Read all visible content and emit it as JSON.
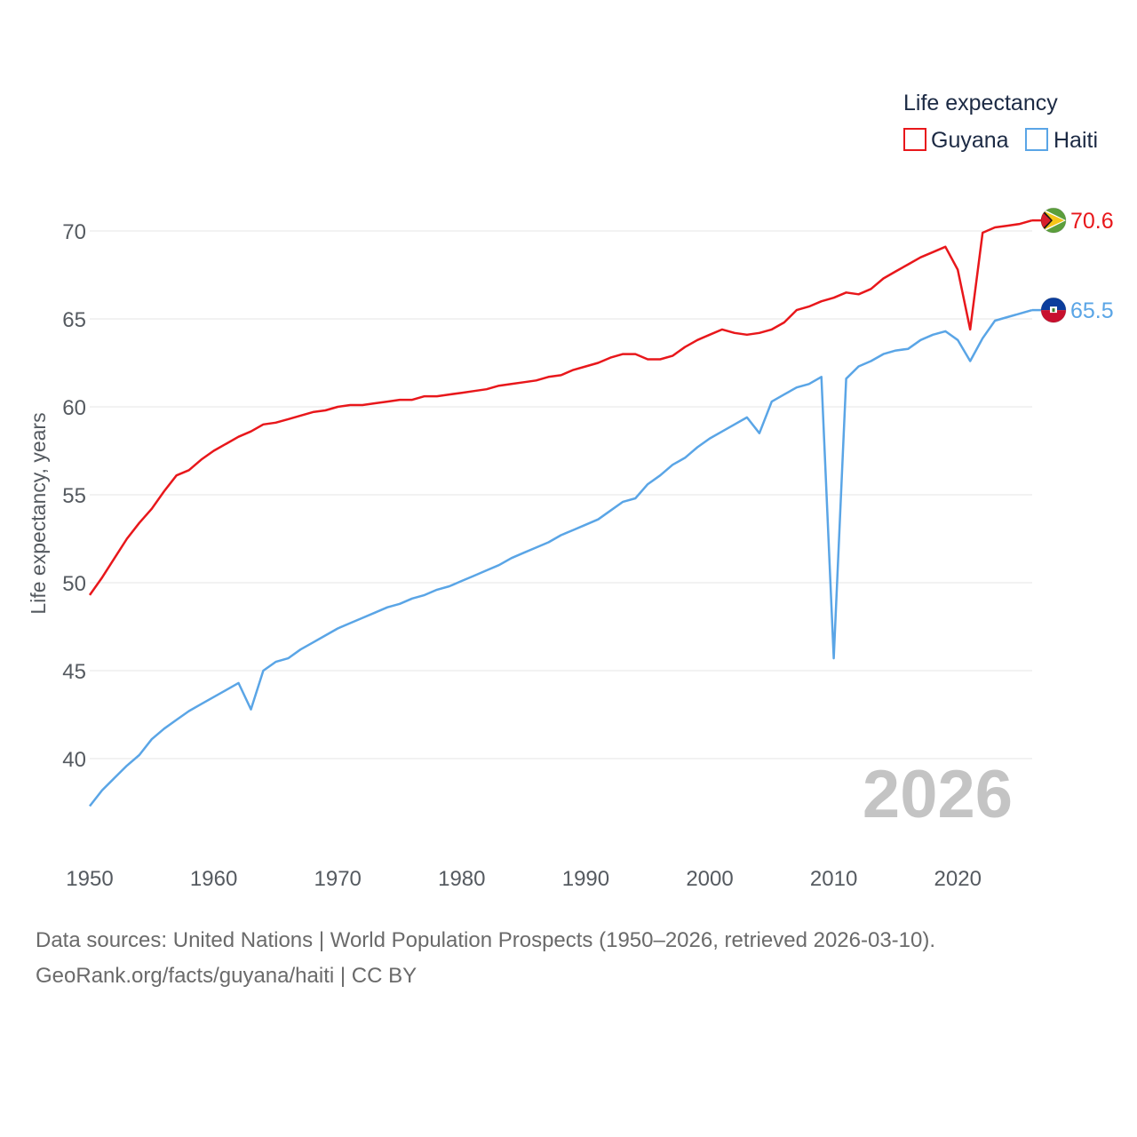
{
  "chart_data": {
    "type": "line",
    "title": "",
    "xlabel": "",
    "ylabel": "Life expectancy, years",
    "xlim": [
      1950,
      2026
    ],
    "ylim": [
      35,
      72
    ],
    "y_ticks": [
      40,
      45,
      50,
      55,
      60,
      65,
      70
    ],
    "x_ticks": [
      1950,
      1960,
      1970,
      1980,
      1990,
      2000,
      2010,
      2020
    ],
    "legend_title": "Life expectancy",
    "legend_position": "top-right",
    "current_year": "2026",
    "x": [
      1950,
      1951,
      1952,
      1953,
      1954,
      1955,
      1956,
      1957,
      1958,
      1959,
      1960,
      1961,
      1962,
      1963,
      1964,
      1965,
      1966,
      1967,
      1968,
      1969,
      1970,
      1971,
      1972,
      1973,
      1974,
      1975,
      1976,
      1977,
      1978,
      1979,
      1980,
      1981,
      1982,
      1983,
      1984,
      1985,
      1986,
      1987,
      1988,
      1989,
      1990,
      1991,
      1992,
      1993,
      1994,
      1995,
      1996,
      1997,
      1998,
      1999,
      2000,
      2001,
      2002,
      2003,
      2004,
      2005,
      2006,
      2007,
      2008,
      2009,
      2010,
      2011,
      2012,
      2013,
      2014,
      2015,
      2016,
      2017,
      2018,
      2019,
      2020,
      2021,
      2022,
      2023,
      2024,
      2025,
      2026
    ],
    "series": [
      {
        "name": "Guyana",
        "color": "#e8171b",
        "end_label": "70.6",
        "flag": "guyana",
        "values": [
          49.3,
          50.3,
          51.4,
          52.5,
          53.4,
          54.2,
          55.2,
          56.1,
          56.4,
          57.0,
          57.5,
          57.9,
          58.3,
          58.6,
          59.0,
          59.1,
          59.3,
          59.5,
          59.7,
          59.8,
          60.0,
          60.1,
          60.1,
          60.2,
          60.3,
          60.4,
          60.4,
          60.6,
          60.6,
          60.7,
          60.8,
          60.9,
          61.0,
          61.2,
          61.3,
          61.4,
          61.5,
          61.7,
          61.8,
          62.1,
          62.3,
          62.5,
          62.8,
          63.0,
          63.0,
          62.7,
          62.7,
          62.9,
          63.4,
          63.8,
          64.1,
          64.4,
          64.2,
          64.1,
          64.2,
          64.4,
          64.8,
          65.5,
          65.7,
          66.0,
          66.2,
          66.5,
          66.4,
          66.7,
          67.3,
          67.7,
          68.1,
          68.5,
          68.8,
          69.1,
          67.8,
          64.4,
          69.9,
          70.2,
          70.3,
          70.4,
          70.6
        ]
      },
      {
        "name": "Haiti",
        "color": "#5aa5e6",
        "end_label": "65.5",
        "flag": "haiti",
        "values": [
          37.3,
          38.2,
          38.9,
          39.6,
          40.2,
          41.1,
          41.7,
          42.2,
          42.7,
          43.1,
          43.5,
          43.9,
          44.3,
          42.8,
          45.0,
          45.5,
          45.7,
          46.2,
          46.6,
          47.0,
          47.4,
          47.7,
          48.0,
          48.3,
          48.6,
          48.8,
          49.1,
          49.3,
          49.6,
          49.8,
          50.1,
          50.4,
          50.7,
          51.0,
          51.4,
          51.7,
          52.0,
          52.3,
          52.7,
          53.0,
          53.3,
          53.6,
          54.1,
          54.6,
          54.8,
          55.6,
          56.1,
          56.7,
          57.1,
          57.7,
          58.2,
          58.6,
          59.0,
          59.4,
          58.5,
          60.3,
          60.7,
          61.1,
          61.3,
          61.7,
          45.7,
          61.6,
          62.3,
          62.6,
          63.0,
          63.2,
          63.3,
          63.8,
          64.1,
          64.3,
          63.8,
          62.6,
          63.9,
          64.9,
          65.1,
          65.3,
          65.5
        ]
      }
    ]
  },
  "footer": {
    "sources": "Data sources: United Nations | World Population Prospects (1950–2026, retrieved 2026-03-10).",
    "credit": "GeoRank.org/facts/guyana/haiti | CC BY"
  }
}
